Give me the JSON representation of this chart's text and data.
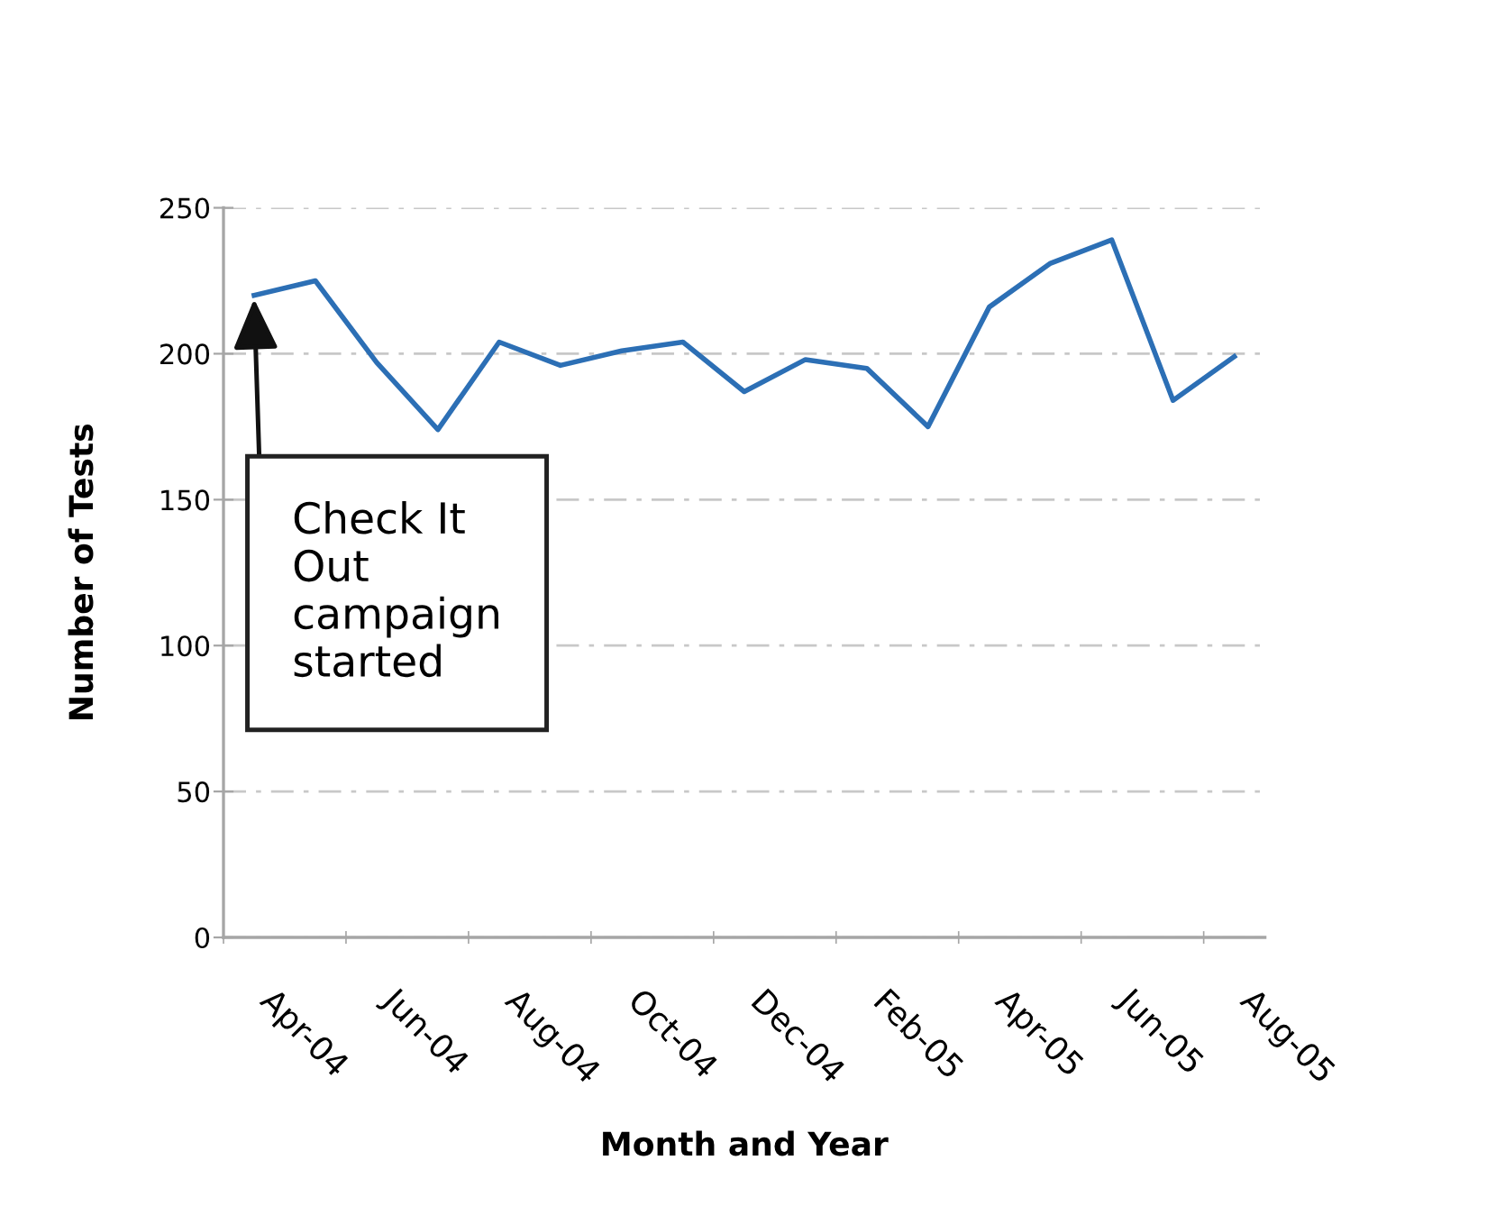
{
  "chart_data": {
    "type": "line",
    "xlabel": "Month and Year",
    "ylabel": "Number of Tests",
    "categories": [
      "Apr-04",
      null,
      "Jun-04",
      null,
      "Aug-04",
      null,
      "Oct-04",
      null,
      "Dec-04",
      null,
      "Feb-05",
      null,
      "Apr-05",
      null,
      "Jun-05",
      null,
      "Aug-05"
    ],
    "series": [
      {
        "color": "#2c6fb5",
        "values": [
          220,
          225,
          197,
          174,
          204,
          196,
          201,
          204,
          187,
          198,
          195,
          175,
          216,
          231,
          239,
          184,
          199
        ]
      }
    ],
    "ylim": [
      0,
      250
    ],
    "yticks": [
      0,
      50,
      100,
      150,
      200,
      250
    ],
    "grid": "y",
    "line_style": "solid",
    "annotations": [
      "Check It\nOut\ncampaign\nstarted"
    ]
  }
}
